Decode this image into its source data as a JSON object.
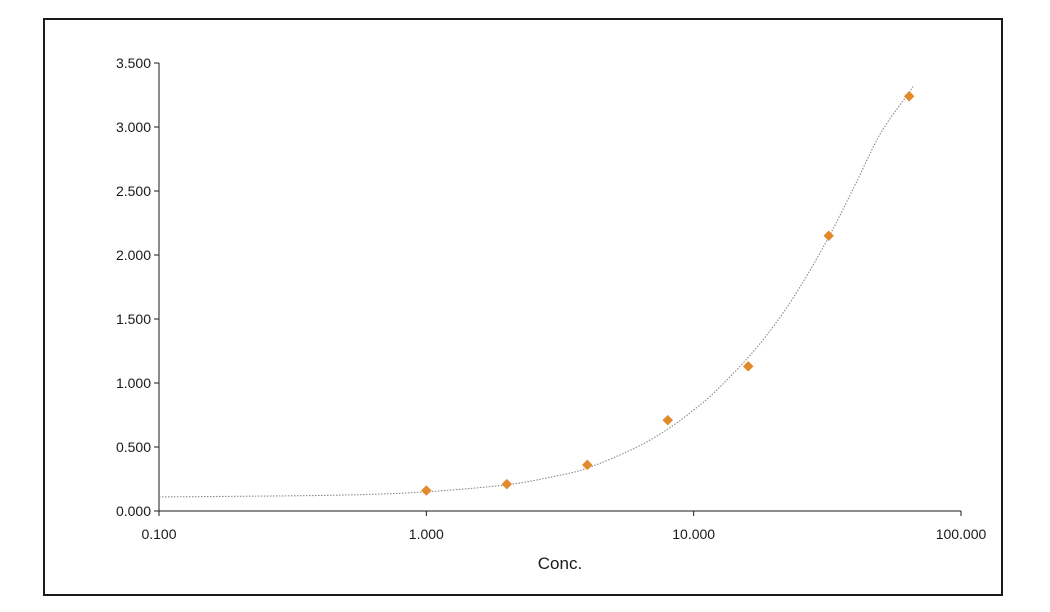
{
  "chart_data": {
    "type": "scatter",
    "title": "",
    "xlabel": "Conc.",
    "ylabel": "",
    "x_scale": "log",
    "xlim": [
      0.1,
      100
    ],
    "ylim": [
      0,
      3.5
    ],
    "x_ticks": [
      0.1,
      1,
      10,
      100
    ],
    "x_tick_labels": [
      "0.100",
      "1.000",
      "10.000",
      "100.000"
    ],
    "y_ticks": [
      0,
      0.5,
      1,
      1.5,
      2,
      2.5,
      3,
      3.5
    ],
    "y_tick_labels": [
      "0.000",
      "0.500",
      "1.000",
      "1.500",
      "2.000",
      "2.500",
      "3.000",
      "3.500"
    ],
    "grid": false,
    "legend": "none",
    "series": [
      {
        "x": [
          1,
          2,
          4,
          8,
          16,
          32,
          64
        ],
        "y": [
          0.16,
          0.21,
          0.36,
          0.71,
          1.13,
          2.15,
          3.24
        ],
        "color": "#E08A2C",
        "marker": "diamond"
      }
    ],
    "fit_curve": {
      "x": [
        0.1,
        0.2,
        0.5,
        1,
        2,
        3,
        4,
        6,
        8,
        10,
        12,
        16,
        20,
        25,
        32,
        40,
        50,
        64,
        66
      ],
      "y": [
        0.11,
        0.115,
        0.125,
        0.15,
        0.205,
        0.27,
        0.335,
        0.49,
        0.64,
        0.79,
        0.93,
        1.2,
        1.45,
        1.75,
        2.14,
        2.54,
        2.95,
        3.27,
        3.32
      ],
      "color": "#8a8a8a",
      "style": "dotted"
    }
  }
}
